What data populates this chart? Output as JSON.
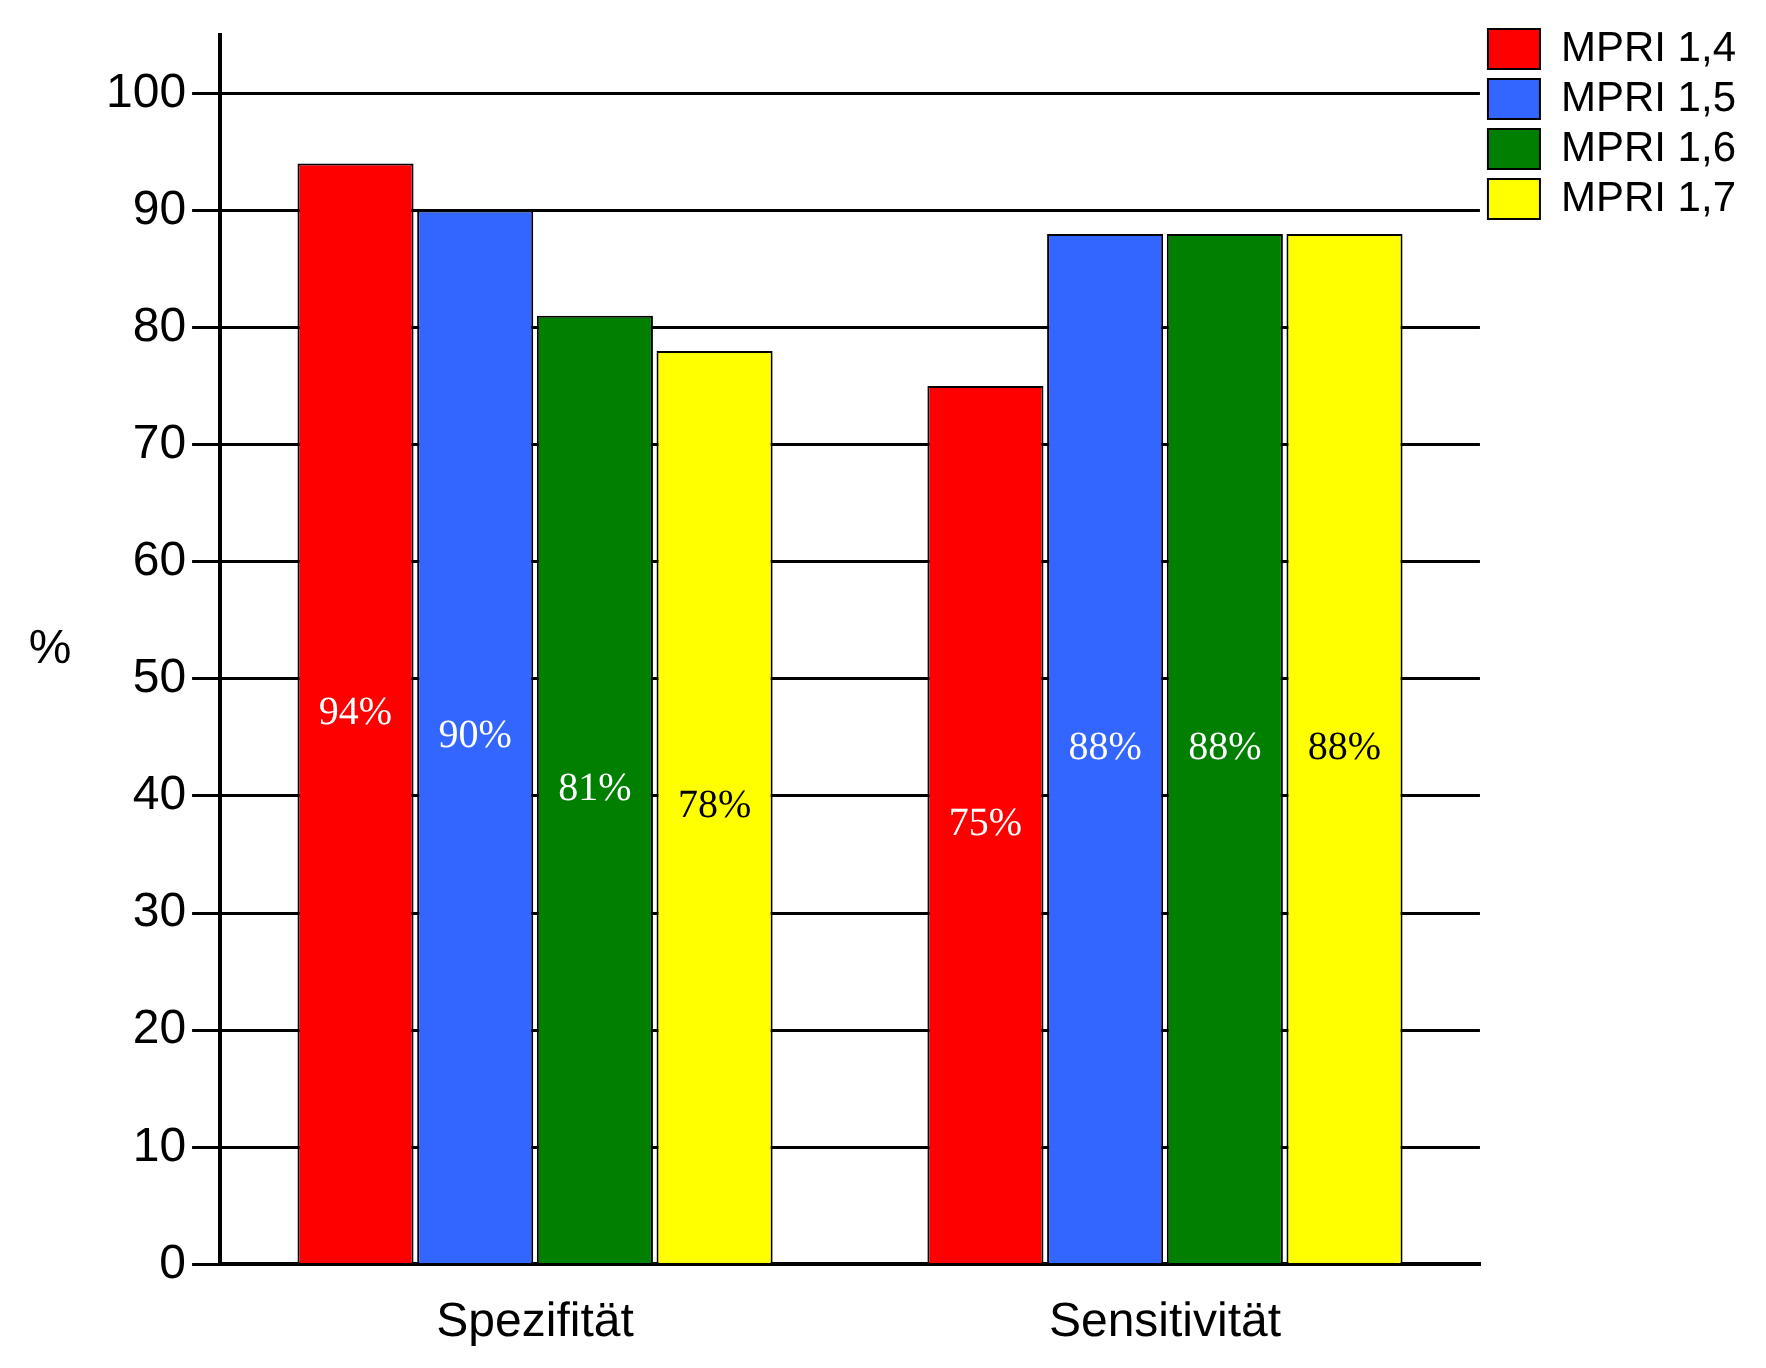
{
  "chart_data": {
    "type": "bar",
    "ylabel": "%",
    "categories": [
      "Spezifität",
      "Sensitivität"
    ],
    "series": [
      {
        "name": "MPRI 1,4",
        "color": "#ff0000",
        "values": [
          94,
          75
        ],
        "value_labels": [
          "94%",
          "75%"
        ]
      },
      {
        "name": "MPRI 1,5",
        "color": "#3366ff",
        "values": [
          90,
          88
        ],
        "value_labels": [
          "90%",
          "88%"
        ]
      },
      {
        "name": "MPRI 1,6",
        "color": "#007f00",
        "values": [
          81,
          88
        ],
        "value_labels": [
          "81%",
          "88%"
        ]
      },
      {
        "name": "MPRI 1,7",
        "color": "#ffff00",
        "values": [
          78,
          88
        ],
        "value_labels": [
          "78%",
          "88%"
        ]
      }
    ],
    "ylim": [
      0,
      105
    ],
    "yticks": [
      0,
      10,
      20,
      30,
      40,
      50,
      60,
      70,
      80,
      90,
      100
    ],
    "grid": "y",
    "legend": "top right"
  }
}
